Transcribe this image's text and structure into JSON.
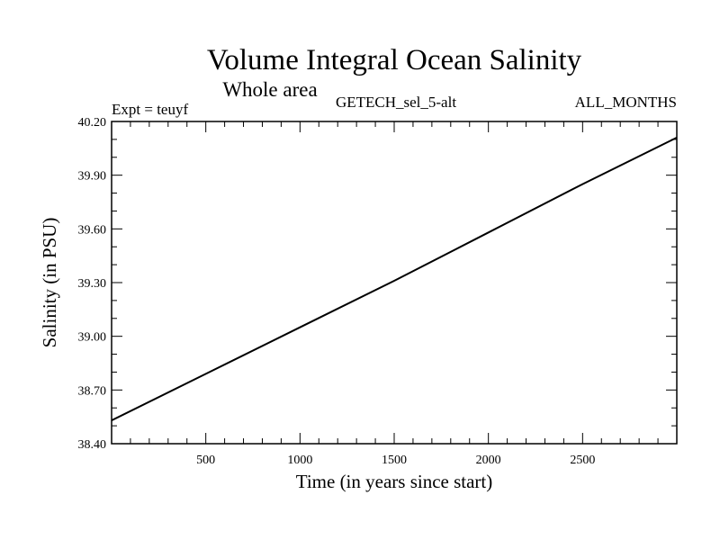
{
  "chart_data": {
    "type": "line",
    "title": "Volume Integral Ocean Salinity",
    "subtitle": "Whole area",
    "left_annotation": "Expt = teuyf",
    "center_annotation": "GETECH_sel_5-alt",
    "right_annotation": "ALL_MONTHS",
    "xlabel": "Time (in years since start)",
    "ylabel": "Salinity (in PSU)",
    "xlim": [
      0,
      3000
    ],
    "ylim": [
      38.4,
      40.2
    ],
    "x_ticks": [
      500,
      1000,
      1500,
      2000,
      2500
    ],
    "x_tick_labels": [
      "500",
      "1000",
      "1500",
      "2000",
      "2500"
    ],
    "y_ticks": [
      38.4,
      38.7,
      39.0,
      39.3,
      39.6,
      39.9,
      40.2
    ],
    "y_tick_labels": [
      "38.40",
      "38.70",
      "39.00",
      "39.30",
      "39.60",
      "39.90",
      "40.20"
    ],
    "grid": false,
    "series": [
      {
        "x": [
          0,
          500,
          1000,
          1500,
          2000,
          2500,
          3000
        ],
        "values": [
          38.53,
          38.79,
          39.05,
          39.31,
          39.58,
          39.85,
          40.11
        ],
        "color": "#000000"
      }
    ]
  }
}
